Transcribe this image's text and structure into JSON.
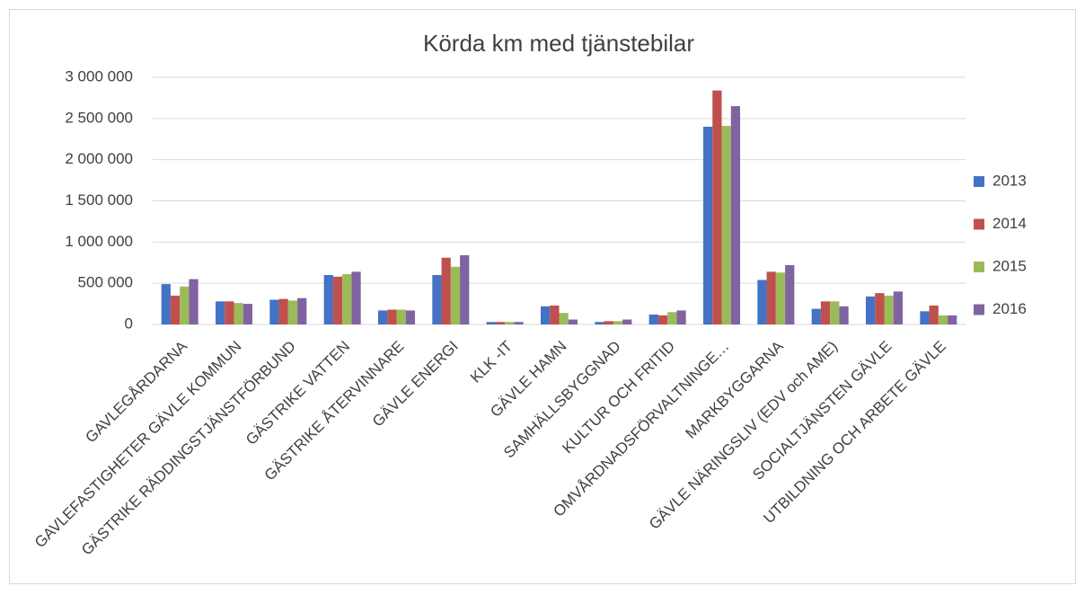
{
  "chart_data": {
    "type": "bar",
    "title": "Körda km med tjänstebilar",
    "categories": [
      "GAVLEGÅRDARNA",
      "GAVLEFASTIGHETER GÄVLE KOMMUN",
      "GÄSTRIKE RÄDDINGSTJÄNSTFÖRBUND",
      "GÄSTRIKE VATTEN",
      "GÄSTRIKE ÅTERVINNARE",
      "GÄVLE ENERGI",
      "KLK -IT",
      "GÄVLE HAMN",
      "SAMHÄLLSBYGGNAD",
      "KULTUR OCH FRITID",
      "OMVÅRDNADSFÖRVALTNINGE…",
      "MARKBYGGARNA",
      "GÄVLE NÄRINGSLIV (EDV och AME)",
      "SOCIALTJÄNSTEN GÄVLE",
      "UTBILDNING OCH ARBETE GÄVLE"
    ],
    "series": [
      {
        "name": "2013",
        "color": "#4472c4",
        "values": [
          490000,
          280000,
          300000,
          600000,
          170000,
          600000,
          30000,
          220000,
          30000,
          120000,
          2400000,
          540000,
          190000,
          340000,
          160000
        ]
      },
      {
        "name": "2014",
        "color": "#c0504d",
        "values": [
          350000,
          280000,
          310000,
          580000,
          180000,
          810000,
          30000,
          230000,
          40000,
          110000,
          2840000,
          640000,
          280000,
          380000,
          230000
        ]
      },
      {
        "name": "2015",
        "color": "#9bbb59",
        "values": [
          460000,
          260000,
          290000,
          610000,
          180000,
          700000,
          30000,
          140000,
          40000,
          150000,
          2410000,
          630000,
          280000,
          350000,
          110000
        ]
      },
      {
        "name": "2016",
        "color": "#8064a2",
        "values": [
          550000,
          250000,
          320000,
          640000,
          170000,
          840000,
          30000,
          60000,
          60000,
          170000,
          2650000,
          720000,
          220000,
          400000,
          110000
        ]
      }
    ],
    "ylim": [
      0,
      3000000
    ],
    "yticks": [
      0,
      {
        "value": 500000,
        "label": "500 000"
      },
      {
        "value": 1000000,
        "label": "1 000 000"
      },
      {
        "value": 1500000,
        "label": "1 500 000"
      },
      {
        "value": 2000000,
        "label": "2 000 000"
      },
      {
        "value": 2500000,
        "label": "2 500 000"
      },
      {
        "value": 3000000,
        "label": "3 000 000"
      }
    ],
    "grid": true,
    "legend": "right"
  }
}
